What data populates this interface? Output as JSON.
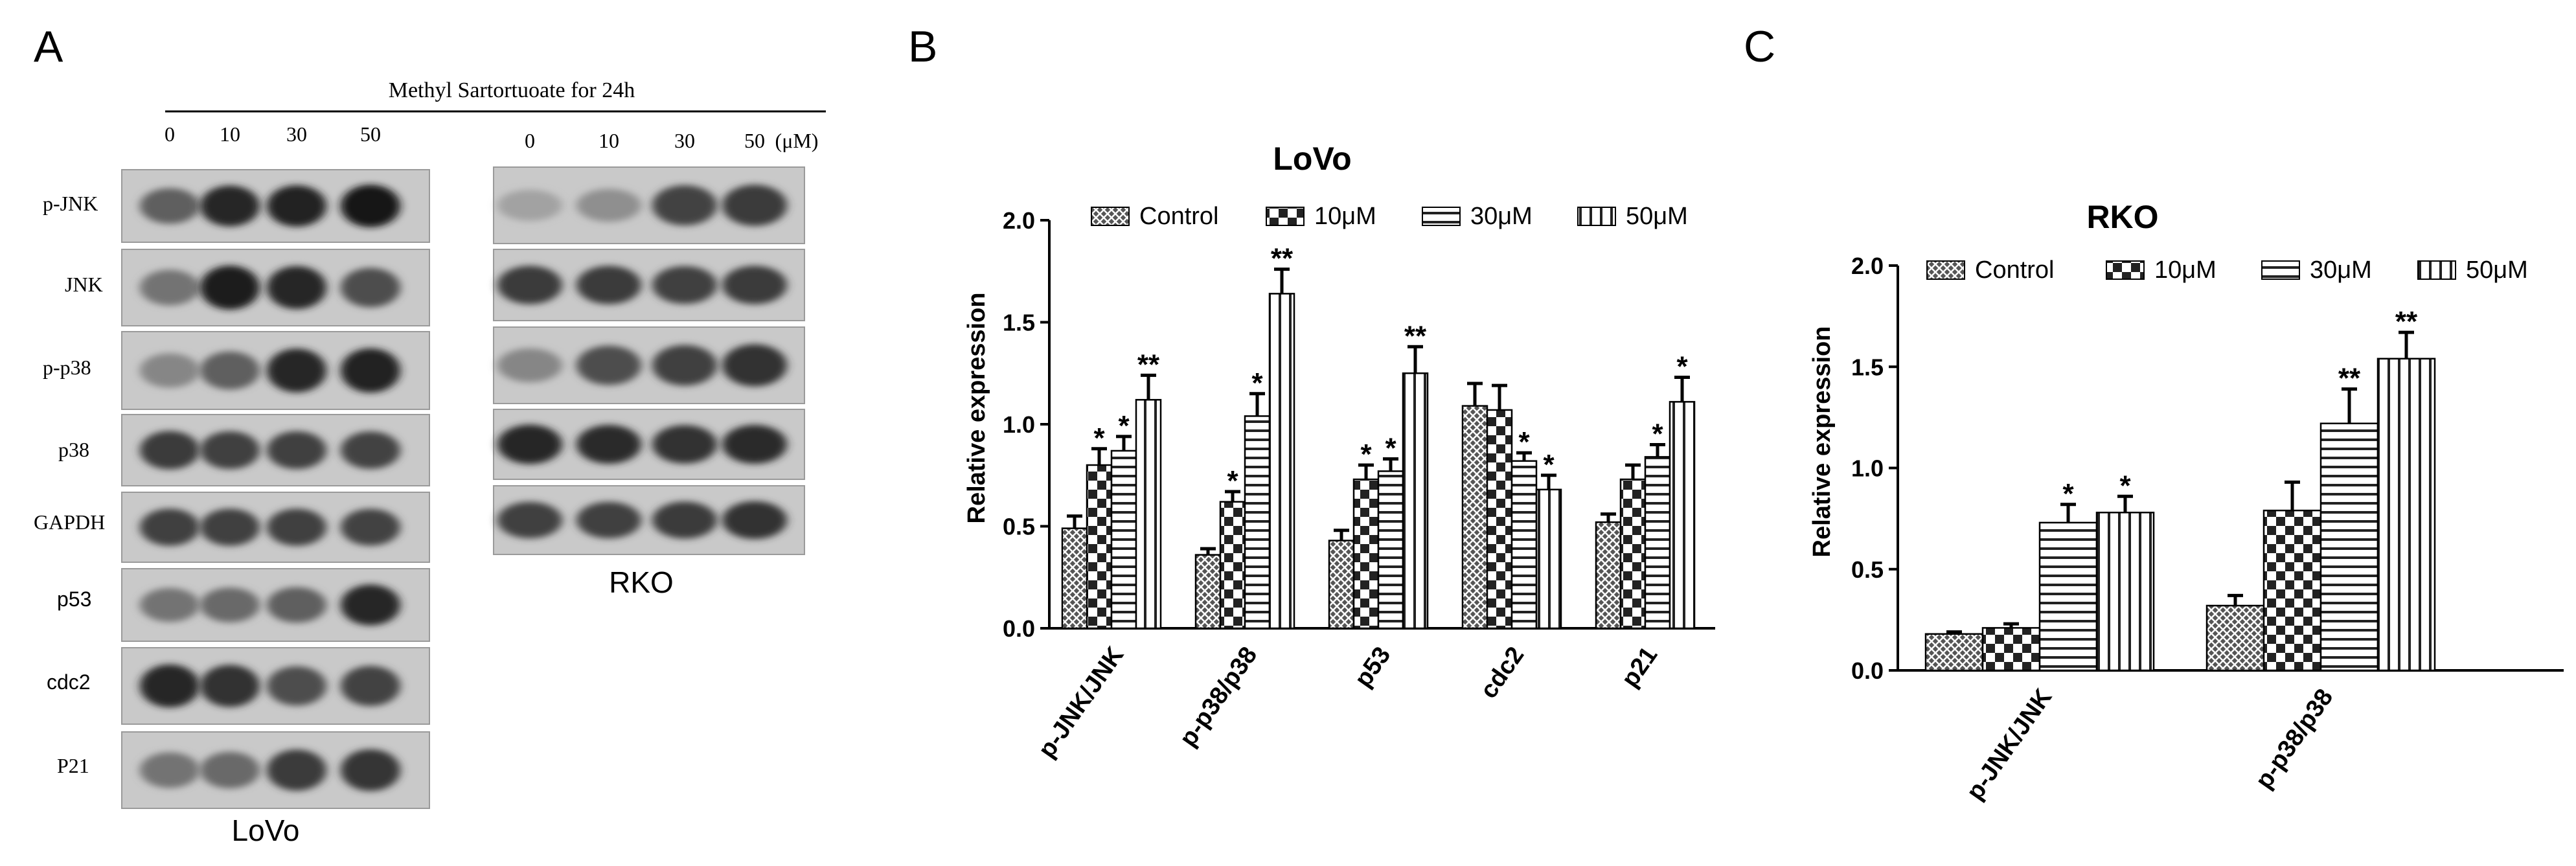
{
  "panel_letters": {
    "a": "A",
    "b": "B",
    "c": "C"
  },
  "blot": {
    "treatment_label": "Methyl Sartortuoate for 24h",
    "doses": [
      "0",
      "10",
      "30",
      "50"
    ],
    "unit": "(μM)",
    "lovo_rows": [
      "p-JNK",
      "JNK",
      "p-p38",
      "p38",
      "GAPDH",
      "p53",
      "cdc2",
      "P21"
    ],
    "lovo_intensity": [
      [
        0.55,
        0.85,
        0.88,
        0.95
      ],
      [
        0.45,
        0.9,
        0.85,
        0.65
      ],
      [
        0.35,
        0.55,
        0.85,
        0.88
      ],
      [
        0.75,
        0.72,
        0.72,
        0.7
      ],
      [
        0.72,
        0.72,
        0.72,
        0.7
      ],
      [
        0.45,
        0.5,
        0.55,
        0.85
      ],
      [
        0.85,
        0.8,
        0.65,
        0.7
      ],
      [
        0.45,
        0.5,
        0.75,
        0.78
      ]
    ],
    "rko_intensity": [
      [
        0.2,
        0.3,
        0.7,
        0.75
      ],
      [
        0.75,
        0.75,
        0.72,
        0.75
      ],
      [
        0.35,
        0.65,
        0.72,
        0.8
      ],
      [
        0.85,
        0.82,
        0.8,
        0.82
      ],
      [
        0.72,
        0.72,
        0.75,
        0.8
      ]
    ],
    "lovo_label": "LoVo",
    "rko_label": "RKO"
  },
  "chart_data": [
    {
      "type": "bar",
      "title": "LoVo",
      "ylabel": "Relative expression",
      "xlabel": "",
      "ylim": [
        0,
        2.0
      ],
      "yticks": [
        "0.0",
        "0.5",
        "1.0",
        "1.5",
        "2.0"
      ],
      "categories": [
        "p-JNK/JNK",
        "p-p38/p38",
        "p53",
        "cdc2",
        "p21"
      ],
      "series": [
        {
          "name": "Control",
          "values": [
            0.49,
            0.36,
            0.43,
            1.09,
            0.52
          ],
          "errors": [
            0.06,
            0.03,
            0.05,
            0.11,
            0.04
          ],
          "sig": [
            "",
            "",
            "",
            "",
            ""
          ]
        },
        {
          "name": "10μM",
          "values": [
            0.8,
            0.62,
            0.73,
            1.07,
            0.73
          ],
          "errors": [
            0.08,
            0.05,
            0.07,
            0.12,
            0.07
          ],
          "sig": [
            "*",
            "*",
            "*",
            "",
            ""
          ]
        },
        {
          "name": "30μM",
          "values": [
            0.87,
            1.04,
            0.77,
            0.82,
            0.84
          ],
          "errors": [
            0.07,
            0.11,
            0.06,
            0.04,
            0.06
          ],
          "sig": [
            "*",
            "*",
            "*",
            "*",
            "*"
          ]
        },
        {
          "name": "50μM",
          "values": [
            1.12,
            1.64,
            1.25,
            0.68,
            1.11
          ],
          "errors": [
            0.12,
            0.12,
            0.13,
            0.07,
            0.12
          ],
          "sig": [
            "**",
            "**",
            "**",
            "*",
            "*"
          ]
        }
      ]
    },
    {
      "type": "bar",
      "title": "RKO",
      "ylabel": "Relative expression",
      "xlabel": "",
      "ylim": [
        0,
        2.0
      ],
      "yticks": [
        "0.0",
        "0.5",
        "1.0",
        "1.5",
        "2.0"
      ],
      "categories": [
        "p-JNK/JNK",
        "p-p38/p38"
      ],
      "series": [
        {
          "name": "Control",
          "values": [
            0.18,
            0.32
          ],
          "errors": [
            0.01,
            0.05
          ],
          "sig": [
            "",
            ""
          ]
        },
        {
          "name": "10μM",
          "values": [
            0.21,
            0.79
          ],
          "errors": [
            0.02,
            0.14
          ],
          "sig": [
            "",
            ""
          ]
        },
        {
          "name": "30μM",
          "values": [
            0.73,
            1.22
          ],
          "errors": [
            0.09,
            0.17
          ],
          "sig": [
            "*",
            "**"
          ]
        },
        {
          "name": "50μM",
          "values": [
            0.78,
            1.54
          ],
          "errors": [
            0.08,
            0.13
          ],
          "sig": [
            "*",
            "**"
          ]
        }
      ]
    }
  ]
}
